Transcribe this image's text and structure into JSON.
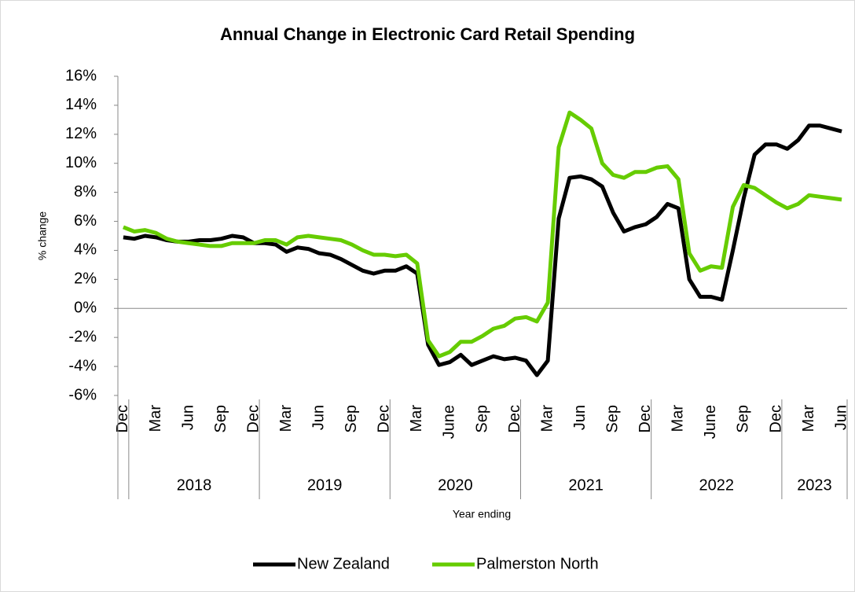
{
  "chart_data": {
    "type": "line",
    "title": "Annual Change in Electronic Card Retail Spending",
    "y_label": "% change",
    "x_label": "Year ending",
    "categories": [
      "Dec",
      null,
      null,
      "Mar",
      null,
      null,
      "Jun",
      null,
      null,
      "Sep",
      null,
      null,
      "Dec",
      null,
      null,
      "Mar",
      null,
      null,
      "Jun",
      null,
      null,
      "Sep",
      null,
      null,
      "Dec",
      null,
      null,
      "Mar",
      null,
      null,
      "June",
      null,
      null,
      "Sep",
      null,
      null,
      "Dec",
      null,
      null,
      "Mar",
      null,
      null,
      "Jun",
      null,
      null,
      "Sep",
      null,
      null,
      "Dec",
      null,
      null,
      "Mar",
      null,
      null,
      "June",
      null,
      null,
      "Sep",
      null,
      null,
      "Dec",
      null,
      null,
      "Mar",
      null,
      null,
      "Jun"
    ],
    "x_groups": [
      {
        "label": null,
        "count": 1
      },
      {
        "label": "2018",
        "count": 12
      },
      {
        "label": "2019",
        "count": 12
      },
      {
        "label": "2020",
        "count": 12
      },
      {
        "label": "2021",
        "count": 12
      },
      {
        "label": "2022",
        "count": 12
      },
      {
        "label": "2023",
        "count": 6
      }
    ],
    "series": [
      {
        "name": "New Zealand",
        "color": "#000000",
        "values": [
          4.9,
          4.8,
          5.0,
          4.9,
          4.7,
          4.6,
          4.6,
          4.7,
          4.7,
          4.8,
          5.0,
          4.9,
          4.5,
          4.5,
          4.4,
          3.9,
          4.2,
          4.1,
          3.8,
          3.7,
          3.4,
          3.0,
          2.6,
          2.4,
          2.6,
          2.6,
          2.9,
          2.4,
          -2.5,
          -3.9,
          -3.7,
          -3.2,
          -3.9,
          -3.6,
          -3.3,
          -3.5,
          -3.4,
          -3.6,
          -4.6,
          -3.6,
          6.2,
          9.0,
          9.1,
          8.9,
          8.4,
          6.6,
          5.3,
          5.6,
          5.8,
          6.3,
          7.2,
          6.9,
          2.0,
          0.8,
          0.8,
          0.6,
          4.0,
          7.6,
          10.6,
          11.3,
          11.3,
          11.0,
          11.6,
          12.6,
          12.6,
          12.4,
          12.2
        ]
      },
      {
        "name": "Palmerston North",
        "color": "#66cc00",
        "values": [
          5.6,
          5.3,
          5.4,
          5.2,
          4.8,
          4.6,
          4.5,
          4.4,
          4.3,
          4.3,
          4.5,
          4.5,
          4.5,
          4.7,
          4.7,
          4.4,
          4.9,
          5.0,
          4.9,
          4.8,
          4.7,
          4.4,
          4.0,
          3.7,
          3.7,
          3.6,
          3.7,
          3.1,
          -2.2,
          -3.3,
          -3.0,
          -2.3,
          -2.3,
          -1.9,
          -1.4,
          -1.2,
          -0.7,
          -0.6,
          -0.9,
          0.4,
          11.1,
          13.5,
          13.0,
          12.4,
          10.0,
          9.2,
          9.0,
          9.4,
          9.4,
          9.7,
          9.8,
          8.9,
          3.8,
          2.6,
          2.9,
          2.8,
          7.0,
          8.5,
          8.3,
          7.8,
          7.3,
          6.9,
          7.2,
          7.8,
          7.7,
          7.6,
          7.5
        ]
      }
    ],
    "ylim": [
      -6,
      16
    ],
    "yticks": [
      {
        "value": -6,
        "label": "-6%"
      },
      {
        "value": -4,
        "label": "-4%"
      },
      {
        "value": -2,
        "label": "-2%"
      },
      {
        "value": 0,
        "label": "0%"
      },
      {
        "value": 2,
        "label": "2%"
      },
      {
        "value": 4,
        "label": "4%"
      },
      {
        "value": 6,
        "label": "6%"
      },
      {
        "value": 8,
        "label": "8%"
      },
      {
        "value": 10,
        "label": "10%"
      },
      {
        "value": 12,
        "label": "12%"
      },
      {
        "value": 14,
        "label": "14%"
      },
      {
        "value": 16,
        "label": "16%"
      }
    ],
    "legend": "bottom"
  }
}
